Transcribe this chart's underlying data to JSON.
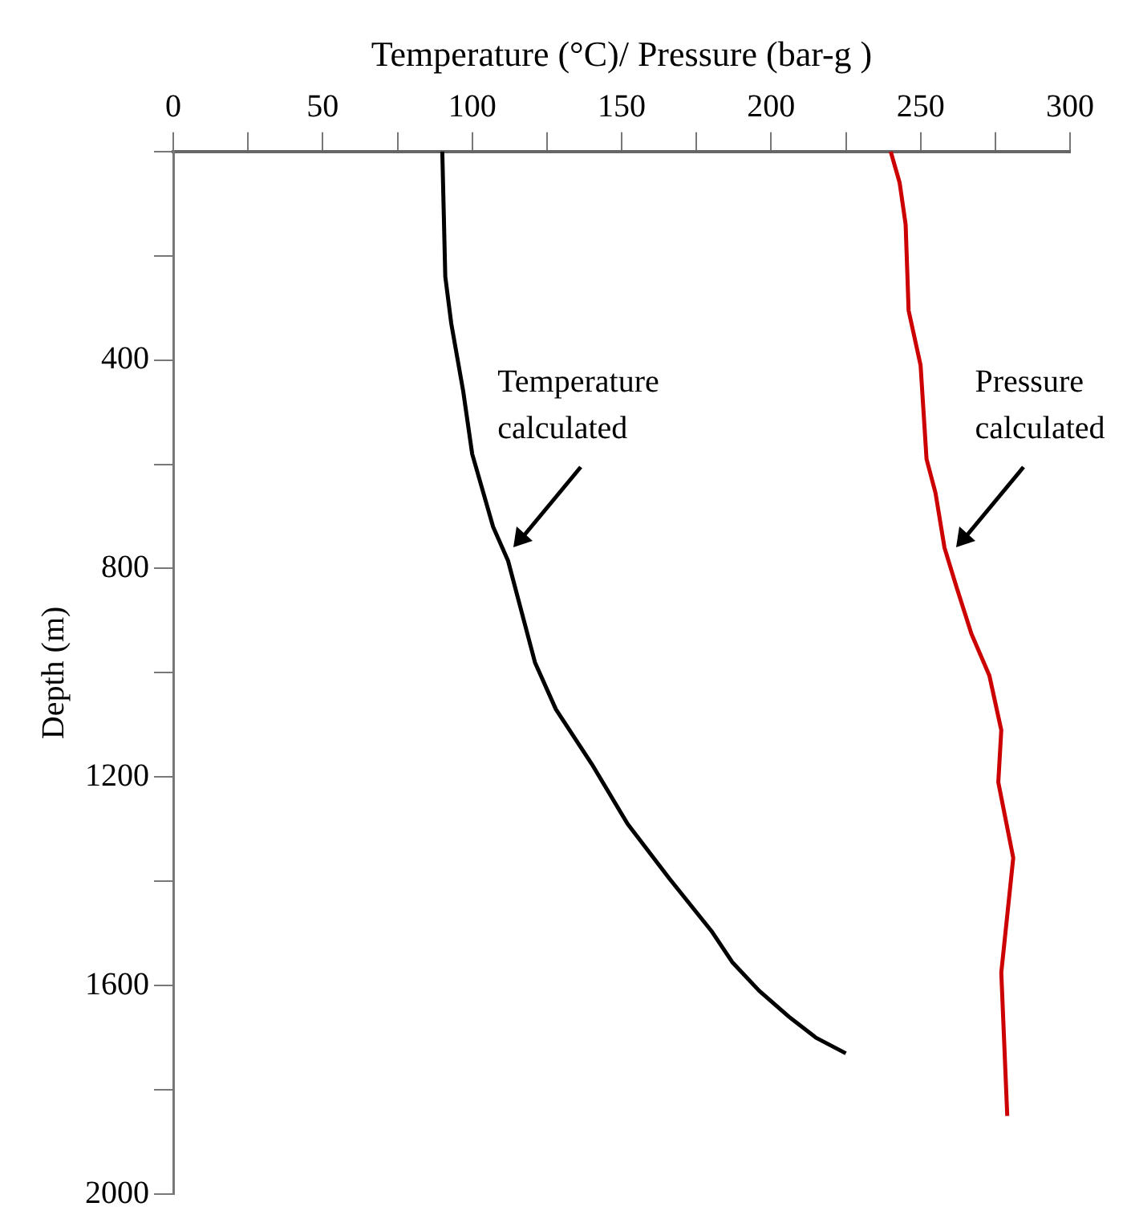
{
  "chart_data": {
    "type": "line",
    "xlabel": "Temperature (°C)/ Pressure (bar-g )",
    "ylabel": "Depth (m)",
    "xlim": [
      0,
      300
    ],
    "xticks": [
      0,
      {
        "value": 25,
        "label": null
      },
      50,
      {
        "value": 75,
        "label": null
      },
      100,
      {
        "value": 125,
        "label": null
      },
      150,
      {
        "value": 175,
        "label": null
      },
      200,
      {
        "value": 225,
        "label": null
      },
      250,
      {
        "value": 275,
        "label": null
      },
      300
    ],
    "ylim": [
      2000,
      0
    ],
    "yticks": [
      {
        "value": 0,
        "label": null
      },
      {
        "value": 200,
        "label": null
      },
      400,
      {
        "value": 600,
        "label": null
      },
      800,
      {
        "value": 1000,
        "label": null
      },
      1200,
      {
        "value": 1400,
        "label": null
      },
      1600,
      {
        "value": 1800,
        "label": null
      },
      2000
    ],
    "series": [
      {
        "color": "#000000",
        "x": [
          90,
          91,
          93,
          97,
          100,
          107,
          112,
          121,
          128,
          140,
          152,
          166,
          180,
          187,
          196,
          206,
          215,
          225
        ],
        "values": [
          0,
          240,
          330,
          460,
          580,
          720,
          785,
          980,
          1070,
          1175,
          1290,
          1395,
          1495,
          1555,
          1610,
          1660,
          1700,
          1730
        ]
      },
      {
        "color": "#cc0000",
        "x": [
          240,
          243,
          245,
          246,
          250,
          252,
          255,
          258,
          262,
          267,
          273,
          277,
          276,
          281,
          277,
          279
        ],
        "values": [
          0,
          60,
          140,
          305,
          410,
          590,
          655,
          760,
          835,
          925,
          1005,
          1110,
          1210,
          1355,
          1575,
          1850
        ]
      }
    ],
    "annotations": [
      "Temperature calculated",
      "Pressure calculated"
    ]
  }
}
